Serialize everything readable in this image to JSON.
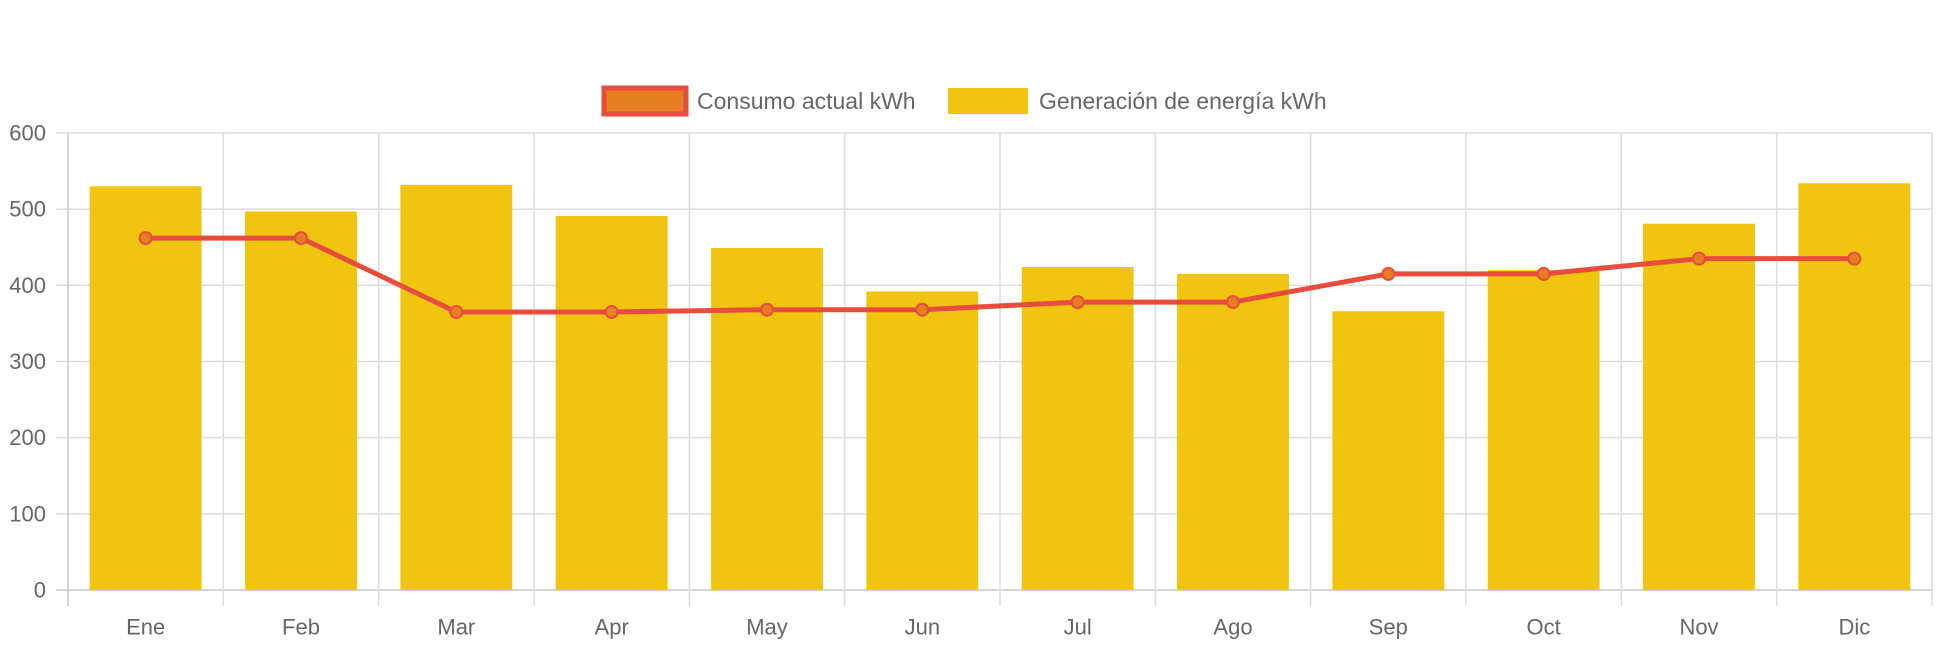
{
  "chart_data": {
    "type": "bar",
    "categories": [
      "Ene",
      "Feb",
      "Mar",
      "Apr",
      "May",
      "Jun",
      "Jul",
      "Ago",
      "Sep",
      "Oct",
      "Nov",
      "Dic"
    ],
    "series": [
      {
        "name": "Consumo actual kWh",
        "type": "line",
        "values": [
          462,
          462,
          365,
          365,
          368,
          368,
          378,
          378,
          415,
          415,
          435,
          435
        ]
      },
      {
        "name": "Generación de energía kWh",
        "type": "bar",
        "values": [
          530,
          497,
          532,
          491,
          449,
          392,
          424,
          415,
          366,
          420,
          481,
          534
        ]
      }
    ],
    "ylim": [
      0,
      600
    ],
    "yticks": [
      "0",
      "100",
      "200",
      "300",
      "400",
      "500",
      "600"
    ],
    "grid": true,
    "legend": "top-center",
    "colors": {
      "line": "#e74c3c",
      "point_fill": "#e67e22",
      "bar": "#f1c40f",
      "grid": "#dddddd",
      "text": "#666666"
    }
  }
}
